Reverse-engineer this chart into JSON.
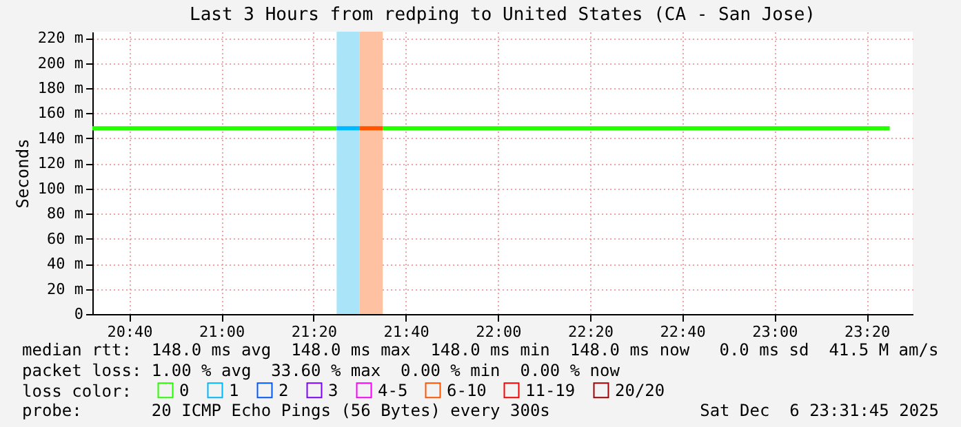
{
  "chart_data": {
    "type": "line",
    "title": "Last 3 Hours from redping to United States (CA - San Jose)",
    "ylabel": "Seconds",
    "legend_title": "loss color:",
    "legend": "bottom",
    "grid": true,
    "line_style": "solid",
    "marker": "none",
    "xlim": [
      20.5333,
      23.5
    ],
    "xticks": [
      {
        "value": 20.6667,
        "label": "20:40"
      },
      {
        "value": 21,
        "label": "21:00"
      },
      {
        "value": 21.3333,
        "label": "21:20"
      },
      {
        "value": 21.6667,
        "label": "21:40"
      },
      {
        "value": 22,
        "label": "22:00"
      },
      {
        "value": 22.3333,
        "label": "22:20"
      },
      {
        "value": 22.6667,
        "label": "22:40"
      },
      {
        "value": 23,
        "label": "23:00"
      },
      {
        "value": 23.3333,
        "label": "23:20"
      }
    ],
    "ylim": [
      0,
      225
    ],
    "yticks": [
      {
        "value": 0,
        "label": "0"
      },
      {
        "value": 20,
        "label": "20 m"
      },
      {
        "value": 40,
        "label": "40 m"
      },
      {
        "value": 60,
        "label": "60 m"
      },
      {
        "value": 80,
        "label": "80 m"
      },
      {
        "value": 100,
        "label": "100 m"
      },
      {
        "value": 120,
        "label": "120 m"
      },
      {
        "value": 140,
        "label": "140 m"
      },
      {
        "value": 160,
        "label": "160 m"
      },
      {
        "value": 180,
        "label": "180 m"
      },
      {
        "value": 200,
        "label": "200 m"
      },
      {
        "value": 220,
        "label": "220 m"
      }
    ],
    "series": [
      {
        "name": "0",
        "color": "#26ff00",
        "x": [
          20.5333,
          21.4167,
          21.5,
          21.5833,
          23.4167
        ],
        "values": [
          148,
          148,
          null,
          148,
          148
        ]
      },
      {
        "name": "1",
        "color": "#00b8ff",
        "x": [
          21.4167,
          21.5
        ],
        "values": [
          148,
          148
        ]
      },
      {
        "name": "2",
        "color": "#0059ff"
      },
      {
        "name": "3",
        "color": "#7e00ff"
      },
      {
        "name": "4-5",
        "color": "#ff00ff"
      },
      {
        "name": "6-10",
        "color": "#ff5500",
        "x": [
          21.5,
          21.5833
        ],
        "values": [
          148,
          148
        ]
      },
      {
        "name": "11-19",
        "color": "#ff0000"
      },
      {
        "name": "20/20",
        "color": "#a10000"
      }
    ],
    "bands": [
      {
        "axis": "x",
        "from": 21.4167,
        "to": 21.5,
        "color": "#aae4f9"
      },
      {
        "axis": "x",
        "from": 21.5,
        "to": 21.5833,
        "color": "#fec2a2"
      }
    ],
    "annotations": [
      "median rtt:  148.0 ms avg  148.0 ms max  148.0 ms min  148.0 ms now   0.0 ms sd  41.5 M am/s",
      "packet loss: 1.00 % avg  33.60 % max  0.00 % min  0.00 % now",
      "probe:       20 ICMP Echo Pings (56 Bytes) every 300s",
      "Sat Dec  6 23:31:45 2025"
    ]
  }
}
